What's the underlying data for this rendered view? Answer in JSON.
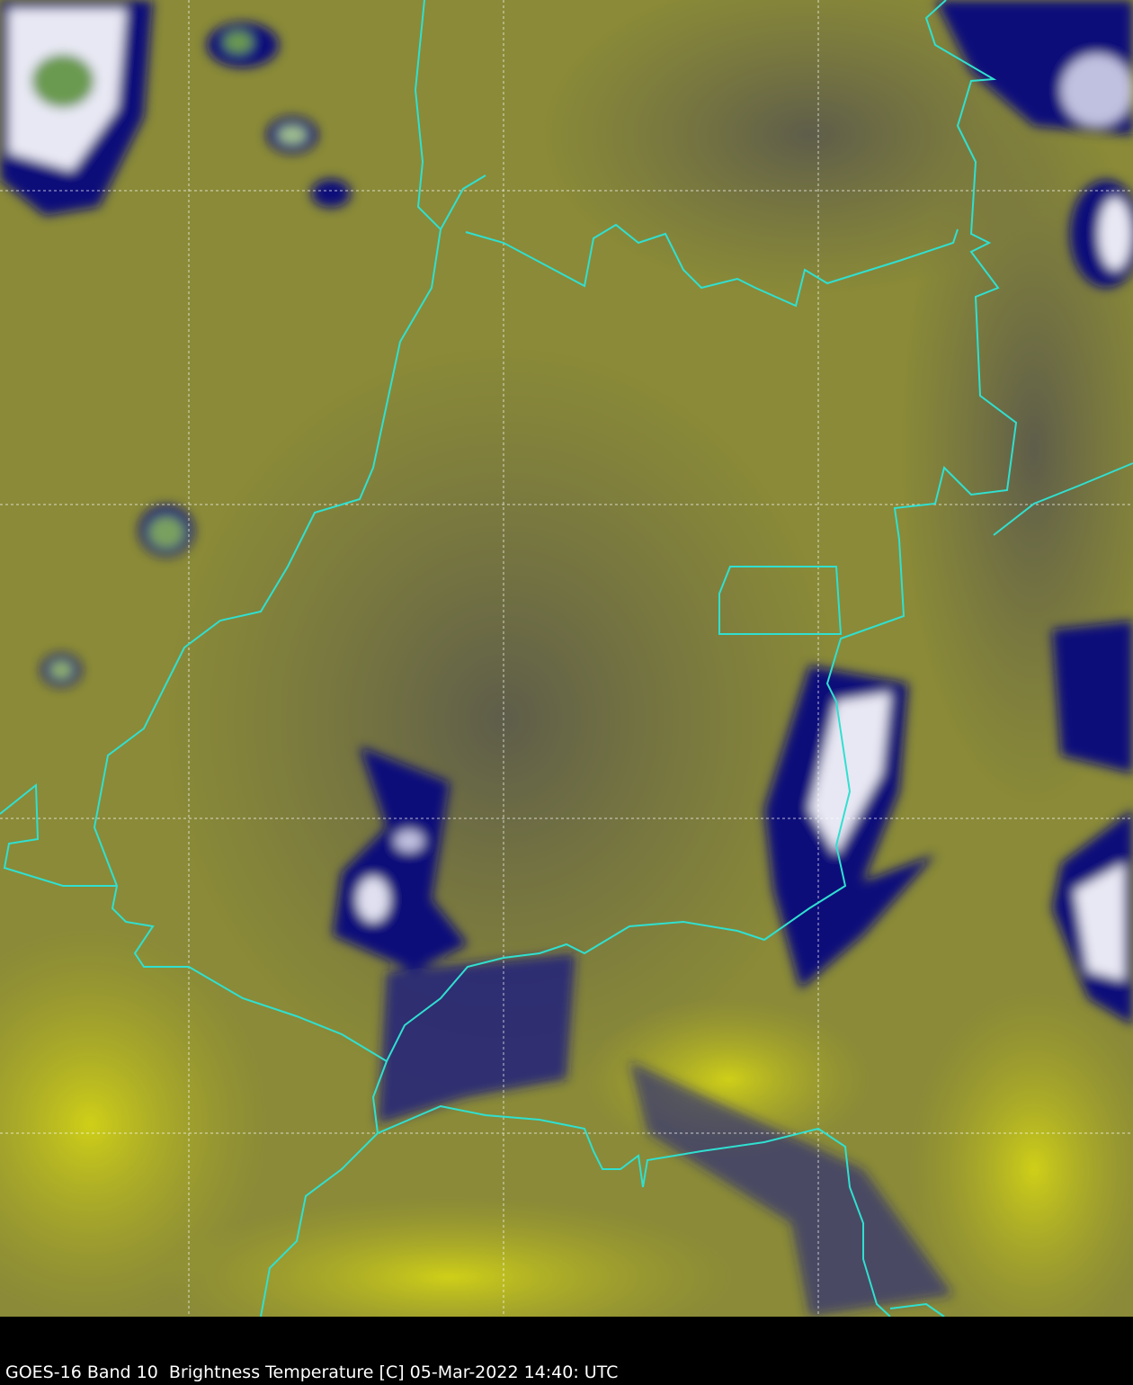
{
  "caption": "GOES-16 Band 10  Brightness Temperature [C] 05-Mar-2022 14:40: UTC",
  "colors": {
    "background_olive": "#8a8a38",
    "dark_olive": "#6b6a45",
    "bright_yellow": "#c8c820",
    "cloud_navy": "#0d0d7a",
    "cloud_white": "#e8e8f4",
    "cloud_green": "#6a9a50",
    "border": "#30e0d0",
    "grid": "#ffffff"
  },
  "map": {
    "borders": "cyan",
    "gridlines": "dashed white"
  }
}
